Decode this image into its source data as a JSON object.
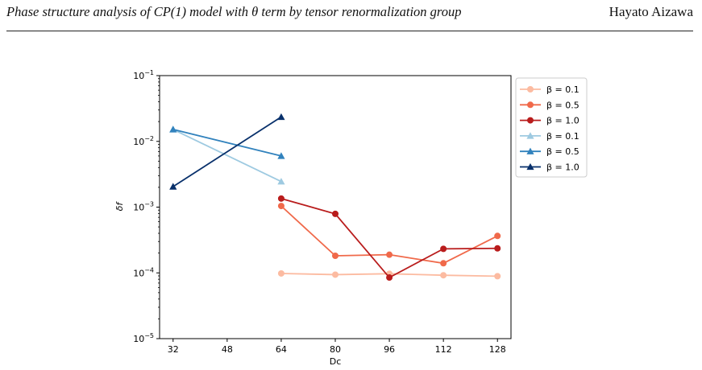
{
  "header": {
    "title": "Phase structure analysis of CP(1) model with θ term by tensor renormalization group",
    "author": "Hayato Aizawa"
  },
  "colors": {
    "red_0.1": "#fcbba1",
    "red_0.5": "#f0694a",
    "red_1.0": "#b91c1c",
    "blue_0.1": "#9ecae1",
    "blue_0.5": "#3182bd",
    "blue_1.0": "#08306b"
  },
  "chart_data": {
    "type": "line",
    "xlabel": "Dc",
    "ylabel": "δf",
    "yscale": "log",
    "xlim": [
      28,
      132
    ],
    "ylim": [
      1e-05,
      0.1
    ],
    "xticks": [
      32,
      48,
      64,
      80,
      96,
      112,
      128
    ],
    "xtick_labels": [
      "32",
      "48",
      "64",
      "80",
      "96",
      "112",
      "128"
    ],
    "yticks": [
      1e-05,
      0.0001,
      0.001,
      0.01,
      0.1
    ],
    "ytick_labels": [
      [
        "10",
        "−5"
      ],
      [
        "10",
        "−4"
      ],
      [
        "10",
        "−3"
      ],
      [
        "10",
        "−2"
      ],
      [
        "10",
        "−1"
      ]
    ],
    "grid": false,
    "legend_position": "outside-right",
    "series": [
      {
        "name": "β = 0.1",
        "marker": "circle",
        "color": "#fcbba1",
        "x": [
          64,
          80,
          96,
          112,
          128
        ],
        "y": [
          9.8e-05,
          9.4e-05,
          9.7e-05,
          9.2e-05,
          8.9e-05
        ]
      },
      {
        "name": "β = 0.5",
        "marker": "circle",
        "color": "#f0694a",
        "x": [
          64,
          80,
          96,
          112,
          128
        ],
        "y": [
          0.00104,
          0.000182,
          0.000189,
          0.00014,
          0.000365
        ]
      },
      {
        "name": "β = 1.0",
        "marker": "circle",
        "color": "#b91c1c",
        "x": [
          64,
          80,
          96,
          112,
          128
        ],
        "y": [
          0.00135,
          0.00079,
          8.5e-05,
          0.000232,
          0.000236
        ]
      },
      {
        "name": "β = 0.1",
        "marker": "triangle",
        "color": "#9ecae1",
        "x": [
          32,
          64
        ],
        "y": [
          0.0152,
          0.00245
        ]
      },
      {
        "name": "β = 0.5",
        "marker": "triangle",
        "color": "#3182bd",
        "x": [
          32,
          64
        ],
        "y": [
          0.0152,
          0.006
        ]
      },
      {
        "name": "β = 1.0",
        "marker": "triangle",
        "color": "#08306b",
        "x": [
          32,
          64
        ],
        "y": [
          0.00205,
          0.0235
        ]
      }
    ]
  }
}
